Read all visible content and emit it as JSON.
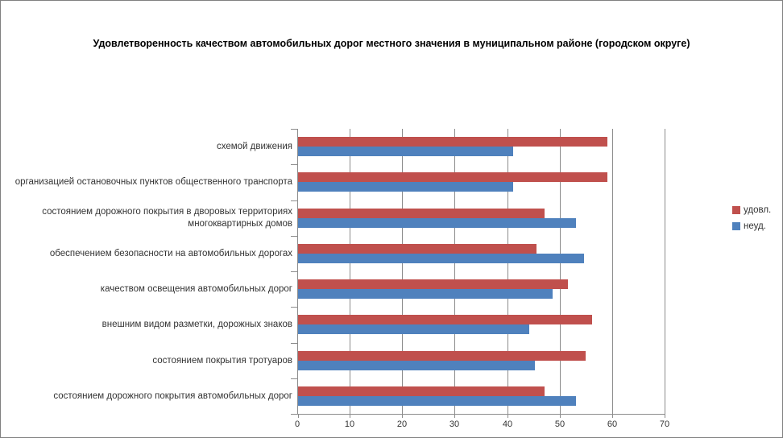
{
  "chart_data": {
    "type": "bar",
    "orientation": "horizontal",
    "title": "Удовлетворенность качеством автомобильных дорог местного значения в муниципальном районе (городском округе)",
    "categories": [
      "схемой движения",
      "организацией остановочных пунктов общественного транспорта",
      "состоянием дорожного покрытия в дворовых территориях многоквартирных домов",
      "обеспечением  безопасности на автомобильных дорогах",
      "качеством освещения  автомобильных дорог",
      "внешним  видом разметки, дорожных знаков",
      "состоянием покрытия тротуаров",
      "состоянием дорожного покрытия автомобильных дорог"
    ],
    "series": [
      {
        "name": "удовл.",
        "color": "#C0504D",
        "values": [
          59,
          59,
          47,
          45.5,
          51.5,
          56,
          54.8,
          47
        ]
      },
      {
        "name": "неуд.",
        "color": "#4F81BD",
        "values": [
          41,
          41,
          53,
          54.5,
          48.5,
          44,
          45.2,
          53
        ]
      }
    ],
    "xlabel": "",
    "ylabel": "",
    "xlim": [
      0,
      70
    ],
    "x_ticks": [
      0,
      10,
      20,
      30,
      40,
      50,
      60,
      70
    ],
    "grid": true,
    "legend_position": "right",
    "colors": {
      "gridline": "#8C8C8C",
      "axis": "#8C8C8C",
      "text": "#333333",
      "title_text": "#000000",
      "frame_border": "#808080"
    }
  }
}
